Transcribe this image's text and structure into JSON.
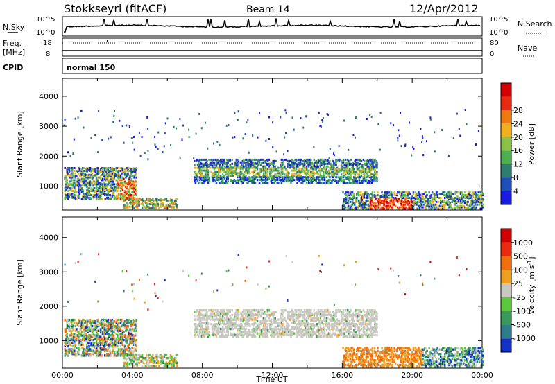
{
  "header": {
    "station": "Stokkseyri (fitACF)",
    "beam": "Beam 14",
    "date": "12/Apr/2012"
  },
  "top_panels": {
    "nsky_label": "N.Sky",
    "nsky_ticks": [
      "10^5",
      "10^0"
    ],
    "nsearch_label": "N.Search",
    "nsearch_ticks": [
      "10^5",
      "10^0"
    ],
    "freq_label": "Freq.",
    "freq_unit": "[MHz]",
    "freq_ticks": [
      "18",
      "8"
    ],
    "nave_label": "Nave",
    "nave_ticks": [
      "80",
      "0"
    ],
    "cpid_label": "CPID",
    "cpid_value": "normal 150"
  },
  "chart_data": [
    {
      "type": "heatmap",
      "panel": "power",
      "ylabel": "Slant Range [km]",
      "xlabel": "",
      "yticks": [
        "1000",
        "2000",
        "3000",
        "4000"
      ],
      "ylim": [
        200,
        4600
      ],
      "xlim": [
        0,
        24
      ],
      "colorbar": {
        "label": "Power [dB]",
        "ticks": [
          "4",
          "8",
          "12",
          "16",
          "20",
          "24",
          "28"
        ],
        "colors": [
          "#1a1ae6",
          "#1f4fb8",
          "#2e7d6f",
          "#4caf50",
          "#8bc34a",
          "#f2b01e",
          "#f07a12",
          "#e82a10",
          "#d40000"
        ]
      },
      "features": [
        {
          "t_start": 0.0,
          "t_end": 4.2,
          "range_min": 500,
          "range_max": 1700,
          "level": "low-high"
        },
        {
          "t_start": 7.5,
          "t_end": 18.0,
          "range_min": 1150,
          "range_max": 1950,
          "level": "medium"
        },
        {
          "t_start": 16.0,
          "t_end": 24.0,
          "range_min": 250,
          "range_max": 900,
          "level": "high"
        }
      ]
    },
    {
      "type": "heatmap",
      "panel": "velocity",
      "ylabel": "Slant Range [km]",
      "xlabel": "Time UT",
      "xticks": [
        "00:00",
        "04:00",
        "08:00",
        "12:00",
        "16:00",
        "20:00",
        "00:00"
      ],
      "yticks": [
        "1000",
        "2000",
        "3000",
        "4000"
      ],
      "ylim": [
        200,
        4600
      ],
      "xlim": [
        0,
        24
      ],
      "colorbar": {
        "label": "Velocity [m s^-1]",
        "ticks": [
          "1000",
          "500",
          "100",
          "25",
          "-25",
          "-100",
          "-500",
          "-1000"
        ],
        "colors": [
          "#1432c8",
          "#2e7d8c",
          "#3a9a5a",
          "#5cc83c",
          "#c8c8c0",
          "#f0a020",
          "#f07010",
          "#ec2a10",
          "#d40000"
        ]
      },
      "features": [
        {
          "t_start": 0.0,
          "t_end": 4.2,
          "range_min": 500,
          "range_max": 1700,
          "dominant": "mixed"
        },
        {
          "t_start": 7.5,
          "t_end": 18.0,
          "range_min": 1150,
          "range_max": 1950,
          "dominant": "grey"
        },
        {
          "t_start": 16.0,
          "t_end": 20.5,
          "range_min": 250,
          "range_max": 800,
          "dominant": "orange"
        }
      ]
    }
  ]
}
